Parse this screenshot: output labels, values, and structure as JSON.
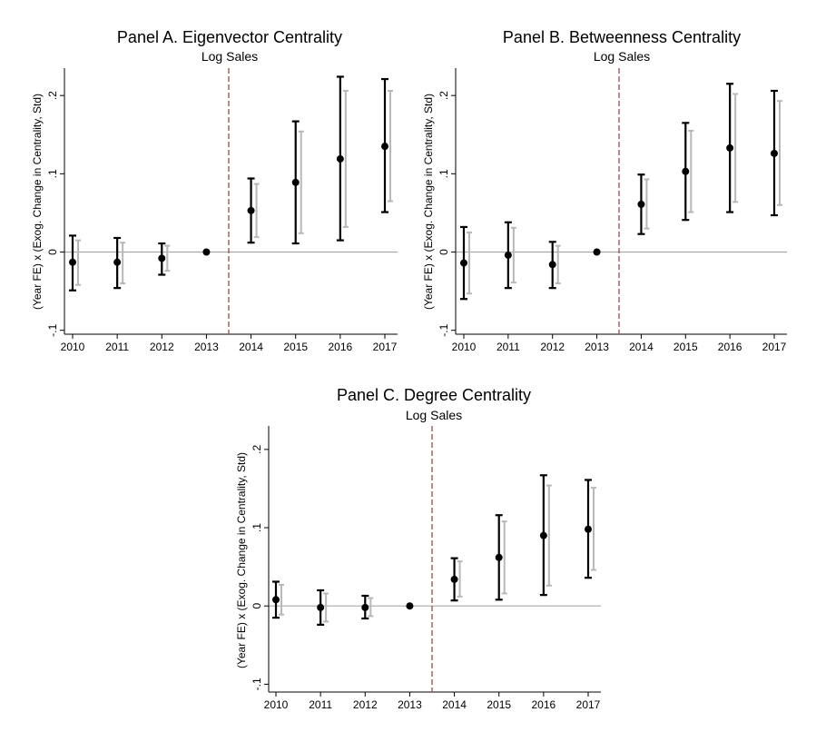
{
  "chart_data": [
    {
      "type": "scatter",
      "title": "Panel A. Eigenvector Centrality",
      "subtitle": "Log Sales",
      "xlabel": "",
      "ylabel": "(Year FE) x (Exog. Change in Centrality, Std)",
      "categories": [
        "2010",
        "2011",
        "2012",
        "2013",
        "2014",
        "2015",
        "2016",
        "2017"
      ],
      "yticks": [
        -0.1,
        0,
        0.1,
        0.2
      ],
      "ytick_labels": [
        "-.1",
        "0",
        ".1",
        ".2"
      ],
      "ylim": [
        -0.105,
        0.235
      ],
      "vline_after_category": "2013",
      "series": [
        {
          "name": "point estimate",
          "values": [
            -0.013,
            -0.013,
            -0.008,
            0.0,
            0.053,
            0.089,
            0.119,
            0.135
          ]
        },
        {
          "name": "wide CI",
          "lower": [
            -0.049,
            -0.046,
            -0.029,
            0.0,
            0.012,
            0.011,
            0.015,
            0.051
          ],
          "upper": [
            0.021,
            0.018,
            0.011,
            0.0,
            0.094,
            0.167,
            0.224,
            0.221
          ]
        },
        {
          "name": "narrow CI",
          "lower": [
            -0.042,
            -0.04,
            -0.024,
            0.0,
            0.019,
            0.024,
            0.032,
            0.065
          ],
          "upper": [
            0.015,
            0.012,
            0.008,
            0.0,
            0.087,
            0.154,
            0.206,
            0.206
          ]
        }
      ]
    },
    {
      "type": "scatter",
      "title": "Panel B. Betweenness Centrality",
      "subtitle": "Log Sales",
      "xlabel": "",
      "ylabel": "(Year FE) x (Exog. Change in Centrality, Std)",
      "categories": [
        "2010",
        "2011",
        "2012",
        "2013",
        "2014",
        "2015",
        "2016",
        "2017"
      ],
      "yticks": [
        -0.1,
        0,
        0.1,
        0.2
      ],
      "ytick_labels": [
        "-.1",
        "0",
        ".1",
        ".2"
      ],
      "ylim": [
        -0.105,
        0.235
      ],
      "vline_after_category": "2013",
      "series": [
        {
          "name": "point estimate",
          "values": [
            -0.014,
            -0.004,
            -0.016,
            0.0,
            0.061,
            0.103,
            0.133,
            0.126
          ]
        },
        {
          "name": "wide CI",
          "lower": [
            -0.06,
            -0.046,
            -0.046,
            0.0,
            0.023,
            0.041,
            0.051,
            0.047
          ],
          "upper": [
            0.032,
            0.038,
            0.013,
            0.0,
            0.099,
            0.165,
            0.215,
            0.206
          ]
        },
        {
          "name": "narrow CI",
          "lower": [
            -0.053,
            -0.039,
            -0.04,
            0.0,
            0.03,
            0.051,
            0.064,
            0.06
          ],
          "upper": [
            0.025,
            0.031,
            0.008,
            0.0,
            0.093,
            0.155,
            0.202,
            0.193
          ]
        }
      ]
    },
    {
      "type": "scatter",
      "title": "Panel C. Degree Centrality",
      "subtitle": "Log Sales",
      "xlabel": "",
      "ylabel": "(Year FE) x (Exog. Change in Centrality, Std)",
      "categories": [
        "2010",
        "2011",
        "2012",
        "2013",
        "2014",
        "2015",
        "2016",
        "2017"
      ],
      "yticks": [
        -0.1,
        0,
        0.1,
        0.2
      ],
      "ytick_labels": [
        "-.1",
        "0",
        ".1",
        ".2"
      ],
      "ylim": [
        -0.11,
        0.23
      ],
      "vline_after_category": "2013",
      "series": [
        {
          "name": "point estimate",
          "values": [
            0.008,
            -0.002,
            -0.002,
            0.0,
            0.034,
            0.062,
            0.09,
            0.098
          ]
        },
        {
          "name": "wide CI",
          "lower": [
            -0.015,
            -0.024,
            -0.016,
            0.0,
            0.007,
            0.008,
            0.014,
            0.036
          ],
          "upper": [
            0.031,
            0.02,
            0.013,
            0.0,
            0.061,
            0.116,
            0.167,
            0.161
          ]
        },
        {
          "name": "narrow CI",
          "lower": [
            -0.011,
            -0.02,
            -0.013,
            0.0,
            0.012,
            0.016,
            0.026,
            0.046
          ],
          "upper": [
            0.027,
            0.016,
            0.01,
            0.0,
            0.057,
            0.108,
            0.154,
            0.151
          ]
        }
      ]
    }
  ],
  "colors": {
    "point": "#000000",
    "wide_ci": "#000000",
    "narrow_ci": "#b8b8b8",
    "zero_line": "#a8a8a8",
    "vline": "#a05a5a",
    "axis": "#000000"
  }
}
